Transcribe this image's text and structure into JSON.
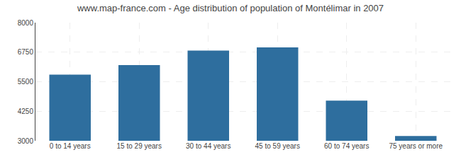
{
  "chart_data": {
    "type": "bar",
    "title": "www.map-france.com - Age distribution of population of Montélimar in 2007",
    "categories": [
      "0 to 14 years",
      "15 to 29 years",
      "30 to 44 years",
      "45 to 59 years",
      "60 to 74 years",
      "75 years or more"
    ],
    "values": [
      5800,
      6200,
      6820,
      6950,
      4700,
      3200
    ],
    "color": "#2e6e9e",
    "ylim": [
      3000,
      8000
    ],
    "yticks": [
      3000,
      4250,
      5500,
      6750,
      8000
    ],
    "grid": true
  }
}
